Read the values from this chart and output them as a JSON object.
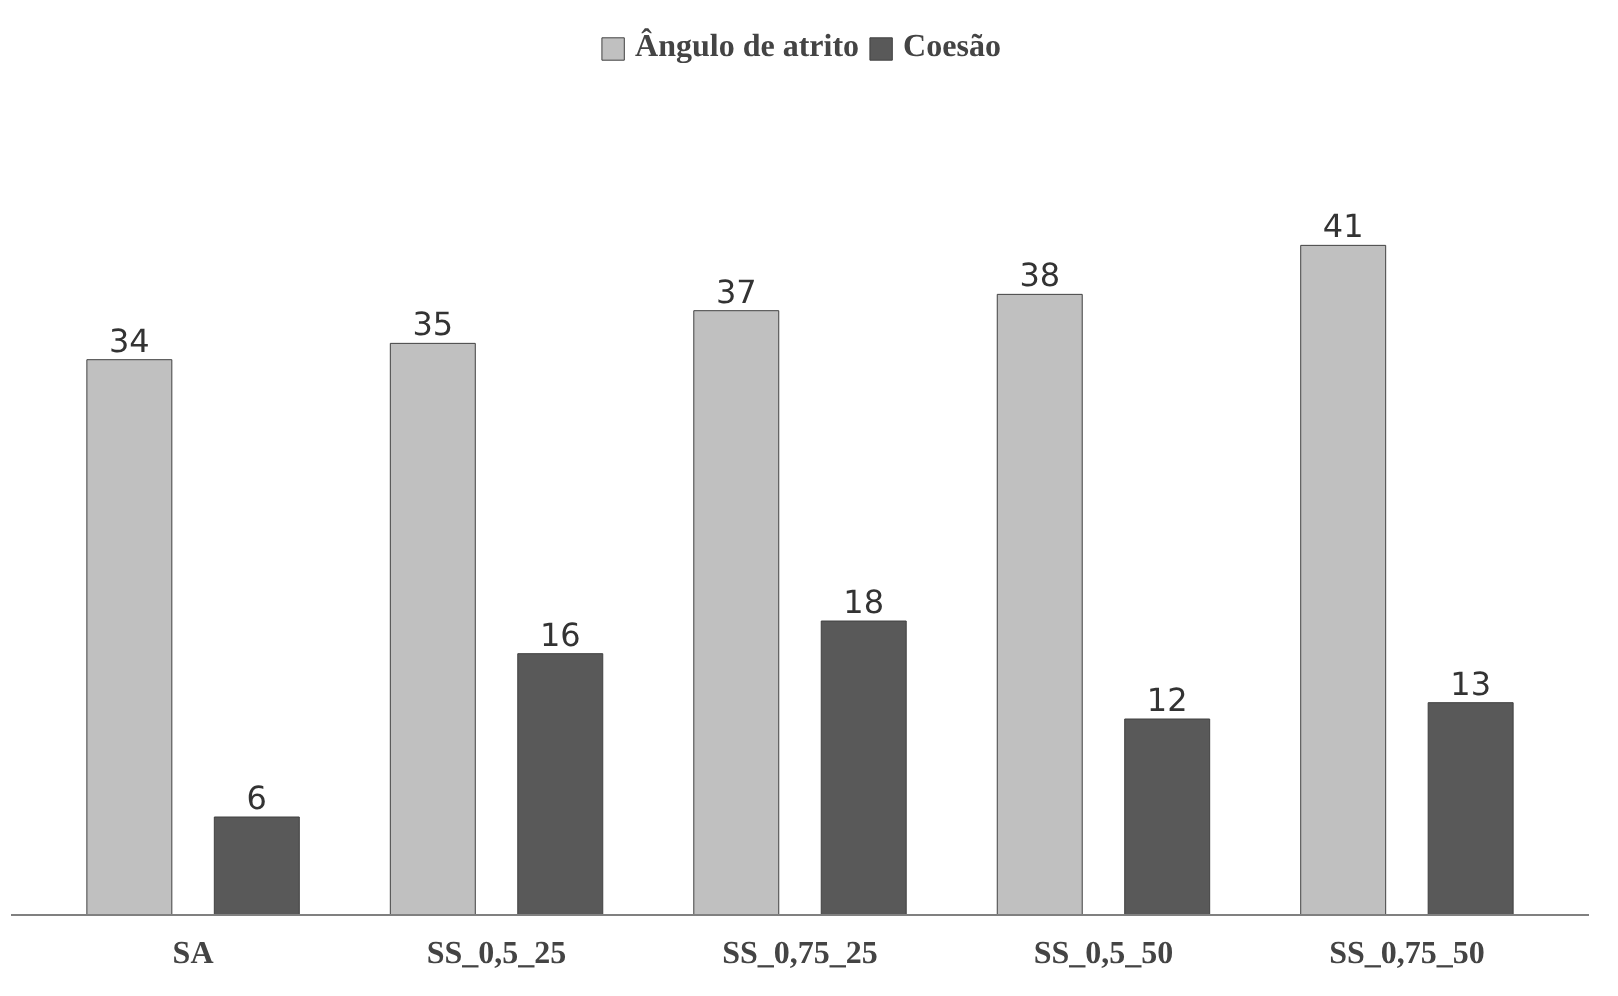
{
  "chart_data": {
    "type": "bar",
    "categories": [
      "SA",
      "SS_0,5_25",
      "SS_0,75_25",
      "SS_0,5_50",
      "SS_0,75_50"
    ],
    "series": [
      {
        "name": "Ângulo de atrito",
        "color": "#c0c0c0",
        "values": [
          34,
          35,
          37,
          38,
          41
        ]
      },
      {
        "name": "Coesão",
        "color": "#595959",
        "values": [
          6,
          16,
          18,
          12,
          13
        ]
      }
    ],
    "data_labels": true,
    "legend": "top",
    "grid": false
  }
}
